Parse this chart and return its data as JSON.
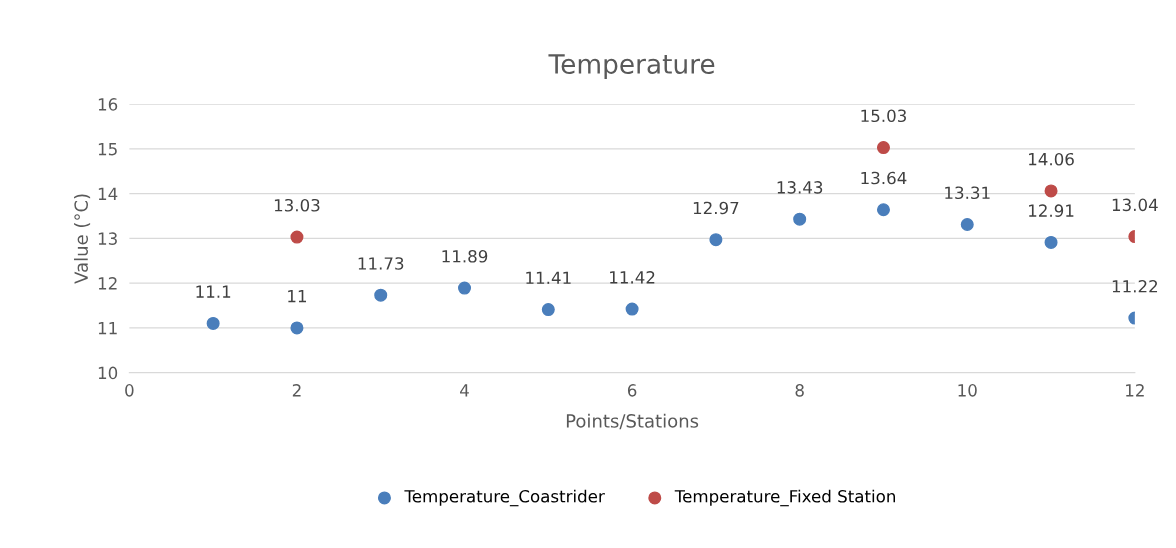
{
  "chart_data": {
    "type": "scatter",
    "title": "Temperature",
    "xlabel": "Points/Stations",
    "ylabel": "Value (°C)",
    "series": [
      {
        "name": "Temperature_Coastrider",
        "color": "#4a7ebb",
        "x": [
          1,
          2,
          3,
          4,
          5,
          6,
          7,
          8,
          9,
          10,
          11,
          12
        ],
        "values": [
          11.1,
          11,
          11.73,
          11.89,
          11.41,
          11.42,
          12.97,
          13.43,
          13.64,
          13.31,
          12.91,
          11.22
        ]
      },
      {
        "name": "Temperature_Fixed Station",
        "color": "#be4b48",
        "x": [
          2,
          9,
          11,
          12
        ],
        "values": [
          13.03,
          15.03,
          14.06,
          13.04
        ]
      }
    ],
    "xlim": [
      0,
      12
    ],
    "xticks": [
      0,
      2,
      4,
      6,
      8,
      10,
      12
    ],
    "ylim": [
      10,
      16
    ],
    "yticks": [
      10,
      11,
      12,
      13,
      14,
      15,
      16
    ],
    "grid": "y",
    "legend": "bottom",
    "marker": "circle",
    "data_labels": true
  }
}
